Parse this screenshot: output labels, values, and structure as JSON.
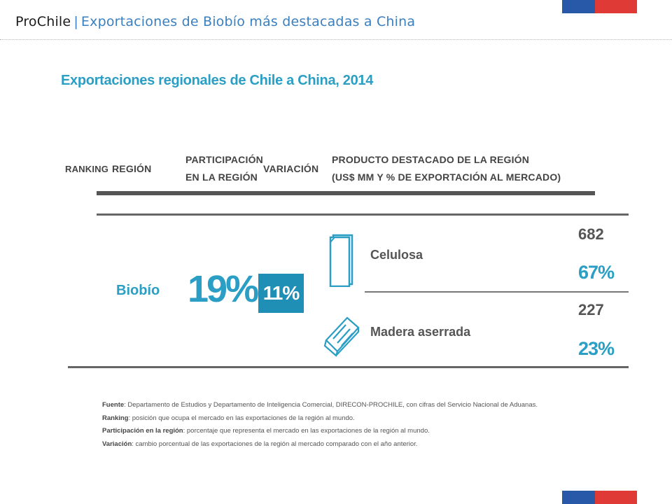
{
  "header": {
    "brand": "ProChile",
    "separator": "|",
    "subtitle": "Exportaciones de Biobío más destacadas a China"
  },
  "colors": {
    "accent": "#2a9ec4",
    "variation_box": "#1f8fb5",
    "flag_blue": "#2859a8",
    "flag_red": "#e03a36"
  },
  "figure": {
    "title": "Exportaciones regionales de Chile a China, 2014",
    "columns": {
      "ranking": "RANKING",
      "region": "REGIÓN",
      "participation_line1": "PARTICIPACIÓN",
      "participation_line2": "EN LA REGIÓN",
      "variation": "VARIACIÓN",
      "product_line1": "PRODUCTO DESTACADO DE LA REGIÓN",
      "product_line2": "(US$ MM Y % DE EXPORTACIÓN AL MERCADO)"
    },
    "row": {
      "region": "Biobío",
      "participation": "19%",
      "variation": "11%",
      "products": [
        {
          "name": "Celulosa",
          "value": "682",
          "share": "67%",
          "icon": "pulp-sheets-icon"
        },
        {
          "name": "Madera aserrada",
          "value": "227",
          "share": "23%",
          "icon": "sawn-wood-icon"
        }
      ]
    },
    "notes": [
      {
        "label": "Fuente",
        "text": ": Departamento de Estudios y Departamento de Inteligencia Comercial, DIRECON-PROCHILE, con cifras del Servicio Nacional de Aduanas."
      },
      {
        "label": "Ranking",
        "text": ": posición que ocupa el mercado en las exportaciones de la región al mundo."
      },
      {
        "label": "Participación en la región",
        "text": ": porcentaje que representa el mercado en las exportaciones de la región al mundo."
      },
      {
        "label": "Variación",
        "text": ": cambio porcentual de las exportaciones de la región al mercado comparado con el año anterior."
      }
    ]
  }
}
